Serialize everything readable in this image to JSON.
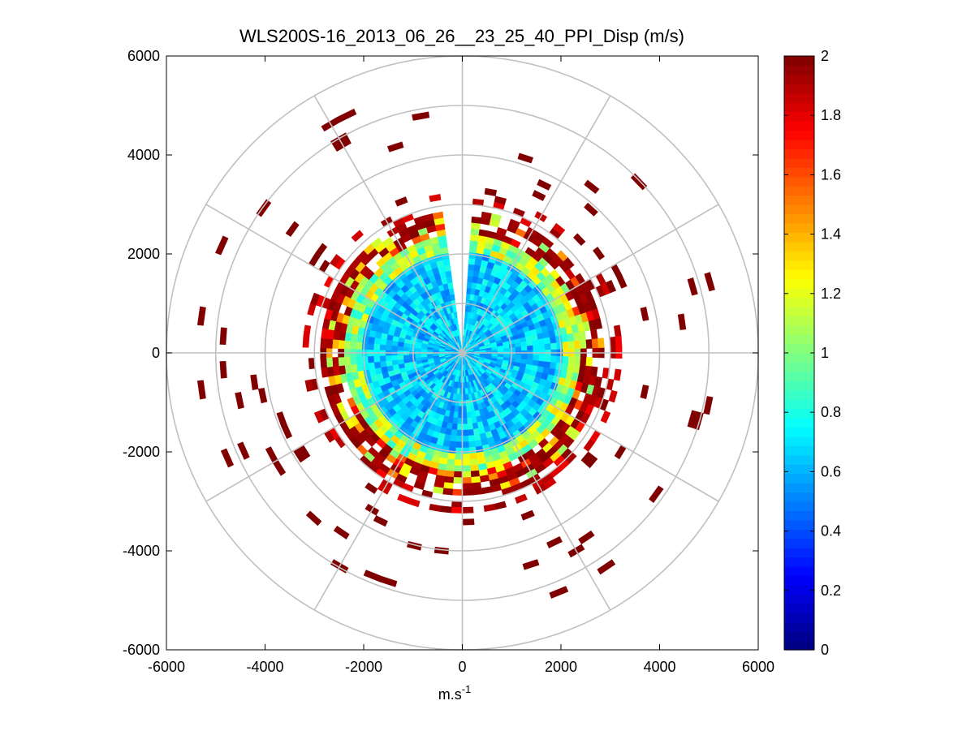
{
  "chart_data": {
    "type": "heatmap",
    "subtype": "polar-ppi",
    "title": "WLS200S-16_2013_06_26__23_25_40_PPI_Disp (m/s)",
    "xlabel_base": "m.s",
    "xlabel_sup": "-1",
    "xlim": [
      -6000,
      6000
    ],
    "ylim": [
      -6000,
      6000
    ],
    "x_ticks": [
      -6000,
      -4000,
      -2000,
      0,
      2000,
      4000,
      6000
    ],
    "y_ticks": [
      -6000,
      -4000,
      -2000,
      0,
      2000,
      4000,
      6000
    ],
    "x_tick_labels": [
      "-6000",
      "-4000",
      "-2000",
      "0",
      "2000",
      "4000",
      "6000"
    ],
    "y_tick_labels": [
      "-6000",
      "-4000",
      "-2000",
      "0",
      "2000",
      "4000",
      "6000"
    ],
    "polar_rings": [
      1000,
      2000,
      3000,
      4000,
      5000,
      6000
    ],
    "polar_spoke_step_deg": 30,
    "grid": true,
    "colorbar": {
      "colormap": "jet",
      "limits": [
        0,
        2
      ],
      "ticks": [
        "0",
        "0.2",
        "0.4",
        "0.6",
        "0.8",
        "1",
        "1.2",
        "1.4",
        "1.6",
        "1.8",
        "2"
      ],
      "tick_values": [
        0,
        0.2,
        0.4,
        0.6,
        0.8,
        1.0,
        1.2,
        1.4,
        1.6,
        1.8,
        2.0
      ]
    },
    "field_summary": {
      "inner_radius_range_m": [
        0,
        2000
      ],
      "inner_value_typical": 0.65,
      "ring_2000_2800_value_typical": 1.1,
      "edge_2400_3000_value_typical": 1.9,
      "sparse_outer_range_m": [
        3000,
        5400
      ],
      "sparse_outer_value_typical": 2.0,
      "data_gap_azimuth_deg": [
        352,
        0
      ]
    }
  },
  "colors": {
    "grid_polar": "#c0c0c0",
    "axes": "#000000",
    "background": "#ffffff"
  }
}
